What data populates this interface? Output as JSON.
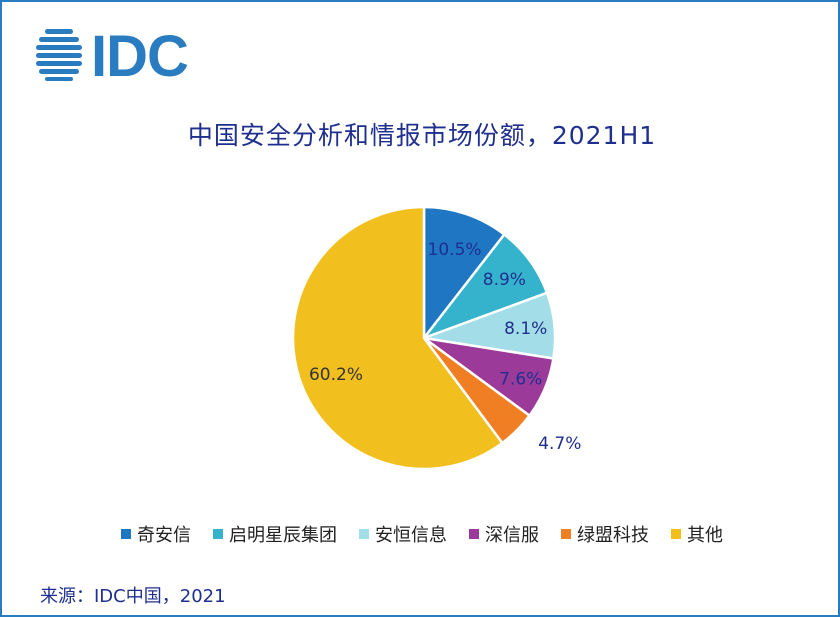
{
  "logo": {
    "text": "IDC",
    "color": "#2a7cc0"
  },
  "title": "中国安全分析和情报市场份额，2021H1",
  "source": "来源：IDC中国，2021",
  "chart_data": {
    "type": "pie",
    "title": "中国安全分析和情报市场份额，2021H1",
    "legend_position": "bottom",
    "slices": [
      {
        "label": "奇安信",
        "value": 10.5,
        "display": "10.5%",
        "color": "#1f77c4"
      },
      {
        "label": "启明星辰集团",
        "value": 8.9,
        "display": "8.9%",
        "color": "#36b3cc"
      },
      {
        "label": "安恒信息",
        "value": 8.1,
        "display": "8.1%",
        "color": "#a3dde8"
      },
      {
        "label": "深信服",
        "value": 7.6,
        "display": "7.6%",
        "color": "#9b3a98"
      },
      {
        "label": "绿盟科技",
        "value": 4.7,
        "display": "4.7%",
        "color": "#f07f23"
      },
      {
        "label": "其他",
        "value": 60.2,
        "display": "60.2%",
        "color": "#f2c01e"
      }
    ],
    "label_color_inside": "#1f2f8f",
    "label_color_outside": "#1f2f8f"
  }
}
